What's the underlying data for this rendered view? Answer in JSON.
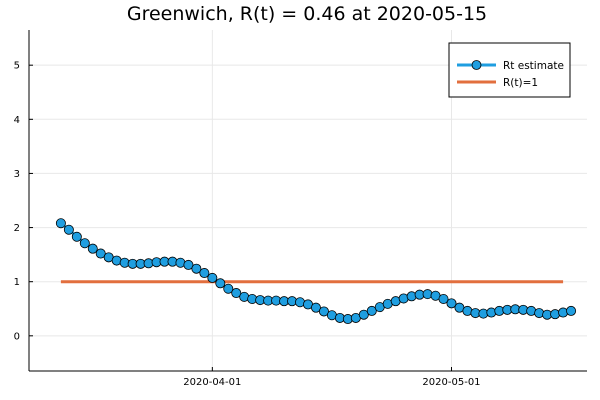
{
  "chart_data": {
    "type": "line",
    "title": "Greenwich, R(t) = 0.46 at 2020-05-15",
    "xlabel": "",
    "ylabel": "",
    "x_start": "2020-03-13",
    "x_end": "2020-05-15",
    "xlim": [
      "2020-03-09",
      "2020-05-18"
    ],
    "ylim": [
      -0.65,
      5.65
    ],
    "yticks": [
      0,
      1,
      2,
      3,
      4,
      5
    ],
    "xticks": [
      "2020-04-01",
      "2020-05-01"
    ],
    "grid": true,
    "legend_position": "top-right",
    "series": [
      {
        "name": "Rt estimate",
        "color": "#1f9ee0",
        "marker": "circle",
        "values": [
          2.08,
          1.96,
          1.83,
          1.71,
          1.61,
          1.52,
          1.45,
          1.39,
          1.35,
          1.33,
          1.33,
          1.34,
          1.36,
          1.37,
          1.37,
          1.35,
          1.31,
          1.24,
          1.16,
          1.07,
          0.97,
          0.87,
          0.79,
          0.72,
          0.68,
          0.66,
          0.65,
          0.65,
          0.64,
          0.64,
          0.62,
          0.58,
          0.52,
          0.45,
          0.38,
          0.33,
          0.31,
          0.33,
          0.39,
          0.46,
          0.53,
          0.59,
          0.64,
          0.69,
          0.73,
          0.76,
          0.77,
          0.74,
          0.68,
          0.6,
          0.52,
          0.46,
          0.42,
          0.41,
          0.43,
          0.46,
          0.48,
          0.49,
          0.48,
          0.46,
          0.42,
          0.39,
          0.4,
          0.43,
          0.46
        ]
      },
      {
        "name": "R(t)=1",
        "color": "#e26f3e",
        "marker": "none",
        "values": [
          1,
          1
        ]
      }
    ]
  }
}
